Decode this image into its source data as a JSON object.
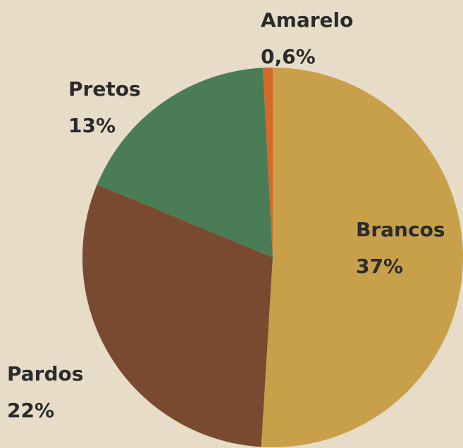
{
  "chart_data": {
    "type": "pie",
    "categories": [
      "Brancos",
      "Pardos",
      "Pretos",
      "Amarelo"
    ],
    "values": [
      37,
      22,
      13,
      0.6
    ],
    "value_labels": [
      "37%",
      "22%",
      "13%",
      "0,6%"
    ],
    "colors": [
      "#c9a04a",
      "#7a4a30",
      "#4a7d56",
      "#d4692a"
    ]
  }
}
